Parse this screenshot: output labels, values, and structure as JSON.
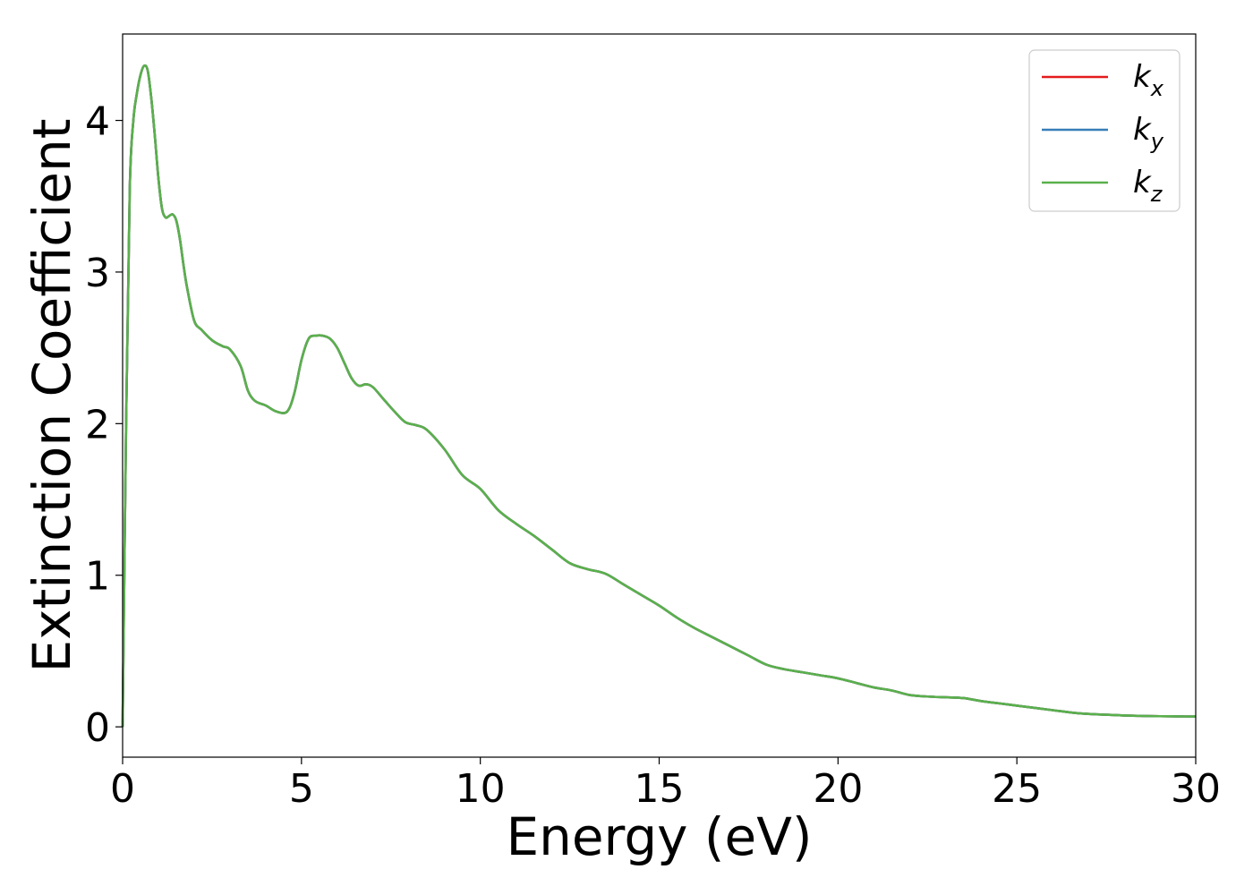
{
  "chart_data": {
    "type": "line",
    "xlabel": "Energy (eV)",
    "ylabel": "Extinction Coefficient",
    "xlim": [
      0,
      30
    ],
    "ylim": [
      -0.2,
      4.57
    ],
    "xticks": [
      "0",
      "5",
      "10",
      "15",
      "20",
      "25",
      "30"
    ],
    "yticks": [
      "0",
      "1",
      "2",
      "3",
      "4"
    ],
    "grid": false,
    "legend_position": "top-right",
    "x": [
      0,
      0.1,
      0.2,
      0.3,
      0.4,
      0.5,
      0.6,
      0.7,
      0.8,
      0.9,
      1.0,
      1.1,
      1.2,
      1.3,
      1.4,
      1.5,
      1.6,
      1.7,
      1.8,
      2.0,
      2.2,
      2.5,
      2.8,
      3.0,
      3.3,
      3.5,
      3.7,
      4.0,
      4.3,
      4.6,
      4.8,
      5.0,
      5.2,
      5.4,
      5.6,
      5.8,
      6.0,
      6.2,
      6.4,
      6.6,
      6.8,
      7.0,
      7.3,
      7.6,
      7.9,
      8.2,
      8.5,
      9.0,
      9.5,
      10.0,
      10.5,
      11.0,
      11.5,
      12.0,
      12.5,
      13.0,
      13.5,
      14.0,
      14.5,
      15.0,
      15.5,
      16.0,
      16.5,
      17.0,
      17.5,
      18.0,
      18.5,
      19.0,
      19.5,
      20.0,
      20.5,
      21.0,
      21.5,
      22.0,
      22.5,
      23.0,
      23.5,
      24.0,
      24.5,
      25.0,
      25.5,
      26.0,
      26.5,
      27.0,
      27.5,
      28.0,
      28.5,
      29.0,
      29.5,
      30.0
    ],
    "series": [
      {
        "name": "k_x",
        "label_main": "k",
        "label_sub": "x",
        "color": "#e41a1c",
        "values": [
          0.0,
          2.05,
          3.55,
          4.0,
          4.18,
          4.3,
          4.36,
          4.33,
          4.15,
          3.9,
          3.62,
          3.42,
          3.36,
          3.37,
          3.38,
          3.34,
          3.22,
          3.05,
          2.9,
          2.68,
          2.62,
          2.55,
          2.51,
          2.49,
          2.38,
          2.22,
          2.15,
          2.12,
          2.08,
          2.08,
          2.2,
          2.42,
          2.56,
          2.58,
          2.58,
          2.56,
          2.5,
          2.4,
          2.3,
          2.25,
          2.26,
          2.24,
          2.16,
          2.08,
          2.01,
          1.99,
          1.96,
          1.83,
          1.66,
          1.57,
          1.43,
          1.34,
          1.26,
          1.17,
          1.08,
          1.04,
          1.01,
          0.94,
          0.87,
          0.8,
          0.72,
          0.65,
          0.59,
          0.53,
          0.47,
          0.41,
          0.38,
          0.36,
          0.34,
          0.32,
          0.29,
          0.26,
          0.24,
          0.21,
          0.2,
          0.195,
          0.19,
          0.17,
          0.155,
          0.14,
          0.125,
          0.11,
          0.095,
          0.085,
          0.08,
          0.075,
          0.072,
          0.07,
          0.069,
          0.068
        ]
      },
      {
        "name": "k_y",
        "label_main": "k",
        "label_sub": "y",
        "color": "#377eb8",
        "values": [
          0.0,
          2.05,
          3.55,
          4.0,
          4.18,
          4.3,
          4.36,
          4.33,
          4.15,
          3.9,
          3.62,
          3.42,
          3.36,
          3.37,
          3.38,
          3.34,
          3.22,
          3.05,
          2.9,
          2.68,
          2.62,
          2.55,
          2.51,
          2.49,
          2.38,
          2.22,
          2.15,
          2.12,
          2.08,
          2.08,
          2.2,
          2.42,
          2.56,
          2.58,
          2.58,
          2.56,
          2.5,
          2.4,
          2.3,
          2.25,
          2.26,
          2.24,
          2.16,
          2.08,
          2.01,
          1.99,
          1.96,
          1.83,
          1.66,
          1.57,
          1.43,
          1.34,
          1.26,
          1.17,
          1.08,
          1.04,
          1.01,
          0.94,
          0.87,
          0.8,
          0.72,
          0.65,
          0.59,
          0.53,
          0.47,
          0.41,
          0.38,
          0.36,
          0.34,
          0.32,
          0.29,
          0.26,
          0.24,
          0.21,
          0.2,
          0.195,
          0.19,
          0.17,
          0.155,
          0.14,
          0.125,
          0.11,
          0.095,
          0.085,
          0.08,
          0.075,
          0.072,
          0.07,
          0.069,
          0.068
        ]
      },
      {
        "name": "k_z",
        "label_main": "k",
        "label_sub": "z",
        "color": "#5ab04c",
        "values": [
          0.0,
          2.05,
          3.55,
          4.0,
          4.18,
          4.3,
          4.36,
          4.33,
          4.15,
          3.9,
          3.62,
          3.42,
          3.36,
          3.37,
          3.38,
          3.34,
          3.22,
          3.05,
          2.9,
          2.68,
          2.62,
          2.55,
          2.51,
          2.49,
          2.38,
          2.22,
          2.15,
          2.12,
          2.08,
          2.08,
          2.2,
          2.42,
          2.56,
          2.58,
          2.58,
          2.56,
          2.5,
          2.4,
          2.3,
          2.25,
          2.26,
          2.24,
          2.16,
          2.08,
          2.01,
          1.99,
          1.96,
          1.83,
          1.66,
          1.57,
          1.43,
          1.34,
          1.26,
          1.17,
          1.08,
          1.04,
          1.01,
          0.94,
          0.87,
          0.8,
          0.72,
          0.65,
          0.59,
          0.53,
          0.47,
          0.41,
          0.38,
          0.36,
          0.34,
          0.32,
          0.29,
          0.26,
          0.24,
          0.21,
          0.2,
          0.195,
          0.19,
          0.17,
          0.155,
          0.14,
          0.125,
          0.11,
          0.095,
          0.085,
          0.08,
          0.075,
          0.072,
          0.07,
          0.069,
          0.068
        ]
      }
    ]
  }
}
